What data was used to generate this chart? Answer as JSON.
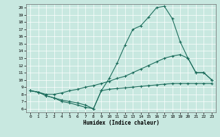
{
  "xlabel": "Humidex (Indice chaleur)",
  "xlim": [
    -0.5,
    23.5
  ],
  "ylim": [
    5.5,
    20.5
  ],
  "xticks": [
    0,
    1,
    2,
    3,
    4,
    5,
    6,
    7,
    8,
    9,
    10,
    11,
    12,
    13,
    14,
    15,
    16,
    17,
    18,
    19,
    20,
    21,
    22,
    23
  ],
  "yticks": [
    6,
    7,
    8,
    9,
    10,
    11,
    12,
    13,
    14,
    15,
    16,
    17,
    18,
    19,
    20
  ],
  "bg_color": "#c8e8e0",
  "grid_color": "#ffffff",
  "line_color": "#1a6b5a",
  "curve1_x": [
    0,
    1,
    2,
    3,
    4,
    5,
    6,
    7,
    8,
    9,
    10,
    11,
    12,
    13,
    14,
    15,
    16,
    17,
    18,
    19,
    20,
    21,
    22,
    23
  ],
  "curve1_y": [
    8.5,
    8.3,
    7.8,
    7.5,
    7.0,
    6.8,
    6.5,
    6.2,
    6.0,
    8.5,
    10.2,
    12.3,
    14.8,
    17.0,
    17.5,
    18.7,
    20.0,
    20.2,
    18.5,
    15.3,
    13.0,
    11.0,
    11.0,
    10.0
  ],
  "curve2_x": [
    0,
    1,
    2,
    3,
    4,
    5,
    6,
    7,
    8,
    9,
    10,
    11,
    12,
    13,
    14,
    15,
    16,
    17,
    18,
    19,
    20,
    21,
    22,
    23
  ],
  "curve2_y": [
    8.5,
    8.3,
    8.0,
    8.0,
    8.2,
    8.5,
    8.7,
    9.0,
    9.2,
    9.5,
    9.8,
    10.2,
    10.5,
    11.0,
    11.5,
    12.0,
    12.5,
    13.0,
    13.3,
    13.5,
    13.0,
    11.0,
    11.0,
    10.0
  ],
  "curve3_x": [
    0,
    1,
    2,
    3,
    4,
    5,
    6,
    7,
    8,
    9,
    10,
    11,
    12,
    13,
    14,
    15,
    16,
    17,
    18,
    19,
    20,
    21,
    22,
    23
  ],
  "curve3_y": [
    8.5,
    8.3,
    7.8,
    7.5,
    7.2,
    7.0,
    6.8,
    6.5,
    6.0,
    8.5,
    8.7,
    8.8,
    8.9,
    9.0,
    9.1,
    9.2,
    9.3,
    9.4,
    9.5,
    9.5,
    9.5,
    9.5,
    9.5,
    9.5
  ]
}
